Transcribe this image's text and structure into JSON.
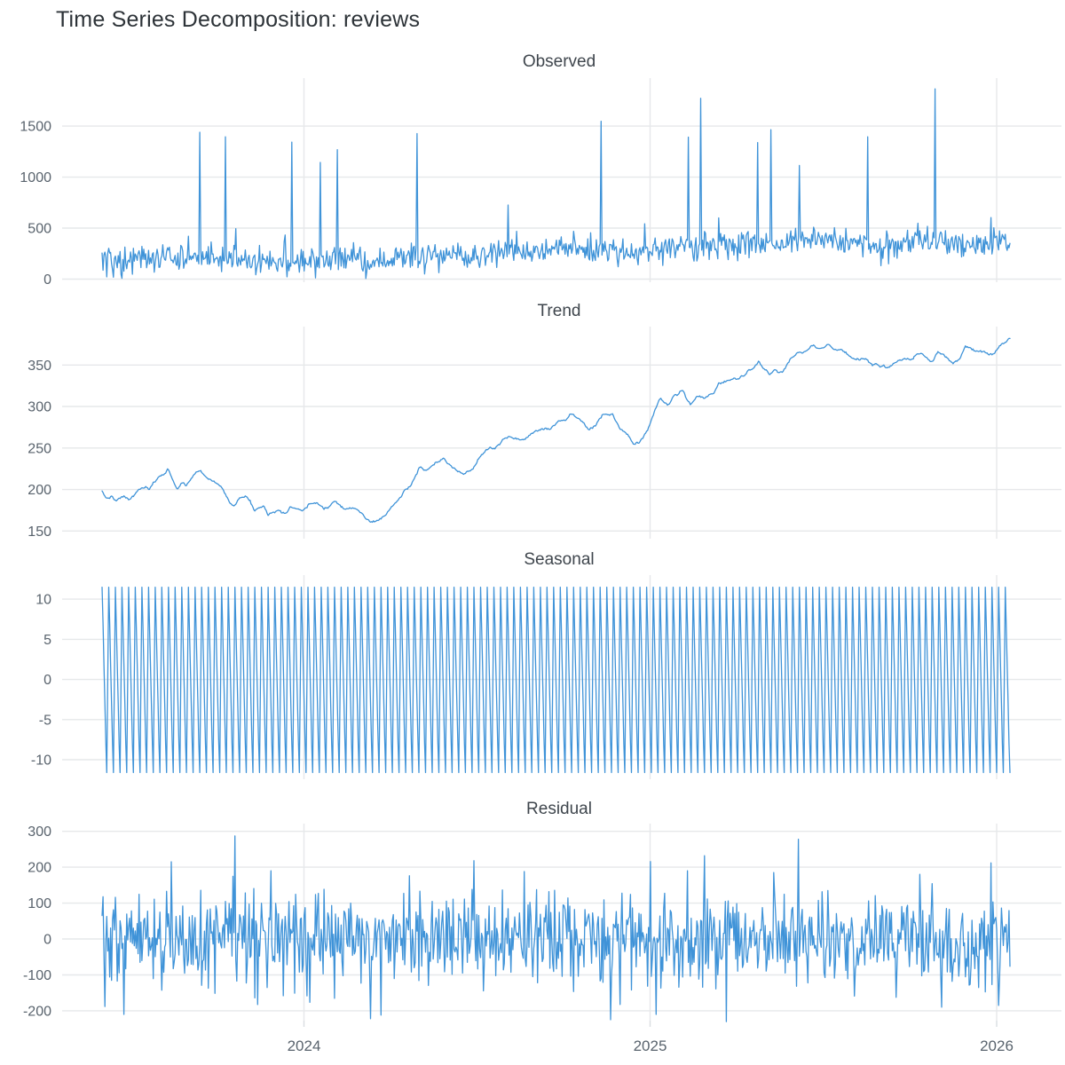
{
  "page": {
    "title": "Time Series Decomposition: reviews"
  },
  "chart_data": {
    "type": "line",
    "title": "Time Series Decomposition: reviews",
    "line_color": "#3f93d8",
    "grid_color": "#e6e8ea",
    "tick_stub_color": "#d9dde1",
    "n_points": 958,
    "legend": "none",
    "grid": "on",
    "x_axis": {
      "ticks": [
        {
          "label": "2024",
          "t": 0.2224
        },
        {
          "label": "2025",
          "t": 0.6036
        },
        {
          "label": "2026",
          "t": 0.9853
        }
      ]
    },
    "seasonal_pattern": [
      11.5,
      7.0,
      2.0,
      -3.0,
      -8.0,
      -11.6,
      0.0
    ],
    "trend_waypoints": [
      [
        0.0,
        196
      ],
      [
        0.005,
        188
      ],
      [
        0.01,
        192
      ],
      [
        0.015,
        184
      ],
      [
        0.024,
        190
      ],
      [
        0.031,
        186
      ],
      [
        0.041,
        199
      ],
      [
        0.047,
        202
      ],
      [
        0.052,
        197
      ],
      [
        0.062,
        212
      ],
      [
        0.072,
        224
      ],
      [
        0.083,
        201
      ],
      [
        0.088,
        209
      ],
      [
        0.093,
        205
      ],
      [
        0.103,
        221
      ],
      [
        0.107,
        223
      ],
      [
        0.115,
        216
      ],
      [
        0.127,
        209
      ],
      [
        0.137,
        194
      ],
      [
        0.145,
        184
      ],
      [
        0.153,
        191
      ],
      [
        0.163,
        188
      ],
      [
        0.168,
        175
      ],
      [
        0.178,
        184
      ],
      [
        0.183,
        173
      ],
      [
        0.193,
        177
      ],
      [
        0.202,
        175
      ],
      [
        0.207,
        184
      ],
      [
        0.217,
        179
      ],
      [
        0.223,
        177
      ],
      [
        0.237,
        186
      ],
      [
        0.244,
        179
      ],
      [
        0.256,
        188
      ],
      [
        0.269,
        180
      ],
      [
        0.279,
        178
      ],
      [
        0.288,
        169
      ],
      [
        0.296,
        160
      ],
      [
        0.303,
        161
      ],
      [
        0.311,
        170
      ],
      [
        0.323,
        183
      ],
      [
        0.332,
        195
      ],
      [
        0.342,
        209
      ],
      [
        0.35,
        227
      ],
      [
        0.357,
        222
      ],
      [
        0.369,
        227
      ],
      [
        0.376,
        236
      ],
      [
        0.388,
        222
      ],
      [
        0.398,
        217
      ],
      [
        0.408,
        225
      ],
      [
        0.418,
        242
      ],
      [
        0.425,
        249
      ],
      [
        0.437,
        252
      ],
      [
        0.445,
        261
      ],
      [
        0.455,
        263
      ],
      [
        0.464,
        259
      ],
      [
        0.472,
        267
      ],
      [
        0.484,
        276
      ],
      [
        0.494,
        275
      ],
      [
        0.501,
        284
      ],
      [
        0.513,
        289
      ],
      [
        0.516,
        291
      ],
      [
        0.526,
        288
      ],
      [
        0.536,
        273
      ],
      [
        0.543,
        276
      ],
      [
        0.552,
        288
      ],
      [
        0.562,
        290
      ],
      [
        0.57,
        273
      ],
      [
        0.577,
        267
      ],
      [
        0.587,
        254
      ],
      [
        0.591,
        256
      ],
      [
        0.601,
        274
      ],
      [
        0.605,
        285
      ],
      [
        0.609,
        295
      ],
      [
        0.615,
        308
      ],
      [
        0.623,
        302
      ],
      [
        0.631,
        315
      ],
      [
        0.64,
        319
      ],
      [
        0.648,
        301
      ],
      [
        0.655,
        310
      ],
      [
        0.665,
        311
      ],
      [
        0.675,
        317
      ],
      [
        0.679,
        328
      ],
      [
        0.687,
        327
      ],
      [
        0.692,
        332
      ],
      [
        0.702,
        335
      ],
      [
        0.712,
        342
      ],
      [
        0.718,
        343
      ],
      [
        0.723,
        350
      ],
      [
        0.731,
        341
      ],
      [
        0.736,
        337
      ],
      [
        0.741,
        346
      ],
      [
        0.75,
        348
      ],
      [
        0.758,
        359
      ],
      [
        0.765,
        366
      ],
      [
        0.775,
        371
      ],
      [
        0.784,
        373
      ],
      [
        0.792,
        371
      ],
      [
        0.799,
        378
      ],
      [
        0.807,
        371
      ],
      [
        0.814,
        366
      ],
      [
        0.823,
        359
      ],
      [
        0.833,
        357
      ],
      [
        0.839,
        359
      ],
      [
        0.848,
        352
      ],
      [
        0.857,
        350
      ],
      [
        0.865,
        348
      ],
      [
        0.873,
        352
      ],
      [
        0.882,
        352
      ],
      [
        0.89,
        353
      ],
      [
        0.897,
        360
      ],
      [
        0.904,
        359
      ],
      [
        0.912,
        352
      ],
      [
        0.921,
        363
      ],
      [
        0.929,
        360
      ],
      [
        0.937,
        350
      ],
      [
        0.945,
        357
      ],
      [
        0.951,
        370
      ],
      [
        0.96,
        362
      ],
      [
        0.966,
        363
      ],
      [
        0.975,
        364
      ],
      [
        0.982,
        364
      ],
      [
        0.989,
        375
      ],
      [
        0.995,
        378
      ],
      [
        1.0,
        382
      ]
    ],
    "panels": [
      {
        "title": "Observed",
        "y_ticks": [
          0,
          500,
          1000,
          1500
        ],
        "y_domain": [
          -30.5,
          1971
        ],
        "series": {
          "kind": "observed",
          "noise_sd": 62,
          "noise_sd2": 100,
          "noise_p2": 0.08,
          "clip_min": 6,
          "seed": 42,
          "spikes": [
            [
              0.1075,
              1440
            ],
            [
              0.1359,
              1396
            ],
            [
              0.1476,
              495
            ],
            [
              0.2092,
              1344
            ],
            [
              0.2405,
              1144
            ],
            [
              0.259,
              1270
            ],
            [
              0.347,
              1427
            ],
            [
              0.4477,
              727
            ],
            [
              0.5494,
              1548
            ],
            [
              0.6462,
              1392
            ],
            [
              0.6589,
              1773
            ],
            [
              0.6794,
              600
            ],
            [
              0.7224,
              1339
            ],
            [
              0.7371,
              1465
            ],
            [
              0.7683,
              1115
            ],
            [
              0.8436,
              1396
            ],
            [
              0.917,
              1866
            ],
            [
              0.9795,
              604
            ]
          ],
          "dips": [
            [
              0.005,
              22
            ],
            [
              0.0215,
              8
            ],
            [
              0.2356,
              12
            ],
            [
              0.2903,
              6
            ]
          ]
        }
      },
      {
        "title": "Trend",
        "y_ticks": [
          150,
          200,
          250,
          300,
          350
        ],
        "y_domain": [
          140.7,
          396.3
        ],
        "series": {
          "kind": "trend",
          "ar1_phi": 0.92,
          "ar1_sd": 0.8,
          "seed": 7
        }
      },
      {
        "title": "Seasonal",
        "y_ticks": [
          -10,
          -5,
          0,
          5,
          10
        ],
        "y_domain": [
          -12.43,
          13
        ],
        "series": {
          "kind": "seasonal",
          "period": 7
        }
      },
      {
        "title": "Residual",
        "y_ticks": [
          -200,
          -100,
          0,
          100,
          200,
          300
        ],
        "y_domain": [
          -227.4,
          321.4
        ],
        "series": {
          "kind": "residual",
          "noise_sd": 63,
          "noise_sd2": 95,
          "noise_p2": 0.1,
          "clip": [
            -212,
            252
          ],
          "seed": 1234,
          "outliers": [
            [
              0.003,
              -188
            ],
            [
              0.0244,
              -210
            ],
            [
              0.0762,
              215
            ],
            [
              0.1466,
              287
            ],
            [
              0.1857,
              190
            ],
            [
              0.2952,
              -222
            ],
            [
              0.4096,
              218
            ],
            [
              0.4653,
              188
            ],
            [
              0.5601,
              -225
            ],
            [
              0.6452,
              190
            ],
            [
              0.6637,
              232
            ],
            [
              0.6872,
              -230
            ],
            [
              0.74,
              185
            ],
            [
              0.7674,
              278
            ],
            [
              0.9003,
              180
            ],
            [
              0.9247,
              -190
            ],
            [
              0.9795,
              212
            ],
            [
              0.9873,
              -185
            ]
          ]
        }
      }
    ]
  }
}
